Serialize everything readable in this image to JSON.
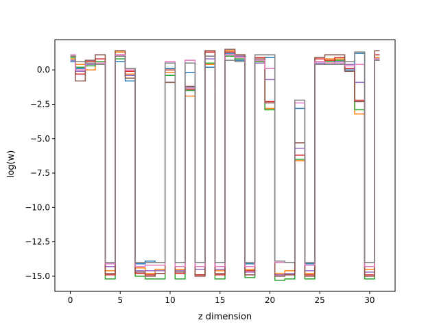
{
  "chart_data": {
    "type": "line",
    "drawstyle": "steps-mid",
    "title": "",
    "xlabel": "z dimension",
    "ylabel": "log(w)",
    "xlim": [
      -1.55,
      32.55
    ],
    "ylim": [
      -16.1,
      2.2
    ],
    "x_ticks": [
      0,
      5,
      10,
      15,
      20,
      25,
      30
    ],
    "x_tick_labels": [
      "0",
      "5",
      "10",
      "15",
      "20",
      "25",
      "30"
    ],
    "y_ticks": [
      0.0,
      -2.5,
      -5.0,
      -7.5,
      -10.0,
      -12.5,
      -15.0
    ],
    "y_tick_labels": [
      "0.0",
      "−2.5",
      "−5.0",
      "−7.5",
      "−10.0",
      "−12.5",
      "−15.0"
    ],
    "grid": false,
    "x": [
      0,
      1,
      2,
      3,
      4,
      5,
      6,
      7,
      8,
      9,
      10,
      11,
      12,
      13,
      14,
      15,
      16,
      17,
      18,
      19,
      20,
      21,
      22,
      23,
      24,
      25,
      26,
      27,
      28,
      29,
      30,
      31
    ],
    "series": [
      {
        "color": "#1f77b4",
        "values": [
          0.6,
          0.1,
          0.4,
          0.5,
          -14.0,
          0.6,
          -0.8,
          -14.1,
          -13.9,
          -14.0,
          0.1,
          -14.0,
          -0.2,
          -14.0,
          0.2,
          -14.0,
          1.2,
          0.7,
          -14.1,
          0.5,
          0.9,
          -13.9,
          -14.0,
          -2.8,
          -14.1,
          0.4,
          0.5,
          0.6,
          0.0,
          1.2,
          -14.0,
          0.8
        ]
      },
      {
        "color": "#ff7f0e",
        "values": [
          0.8,
          0.4,
          0.0,
          0.4,
          -14.6,
          1.3,
          -0.3,
          -14.4,
          -14.8,
          -14.5,
          -0.2,
          -14.5,
          -1.9,
          -14.3,
          0.4,
          -14.6,
          1.4,
          1.1,
          -14.5,
          0.6,
          -2.8,
          -14.8,
          -14.6,
          -6.6,
          -14.8,
          0.6,
          0.8,
          0.8,
          0.3,
          -3.2,
          -14.5,
          0.9
        ]
      },
      {
        "color": "#2ca02c",
        "values": [
          0.9,
          0.2,
          0.3,
          0.6,
          -15.2,
          0.8,
          0.1,
          -15.0,
          -15.2,
          -15.2,
          -0.4,
          -15.2,
          -1.5,
          -14.9,
          0.5,
          -15.2,
          1.0,
          0.8,
          -15.1,
          0.6,
          -2.9,
          -15.3,
          -15.2,
          -6.5,
          -15.2,
          0.5,
          0.6,
          0.7,
          0.4,
          -2.9,
          -15.2,
          0.8
        ]
      },
      {
        "color": "#d62728",
        "values": [
          1.0,
          -0.3,
          0.6,
          0.8,
          -14.9,
          1.1,
          -0.1,
          -14.8,
          -14.9,
          -14.8,
          0.0,
          -14.8,
          -1.4,
          -14.9,
          1.3,
          -14.9,
          1.3,
          1.0,
          -14.6,
          0.9,
          -2.3,
          -14.9,
          -14.9,
          -6.2,
          -14.9,
          0.8,
          0.7,
          0.9,
          0.1,
          -2.2,
          -14.9,
          1.1
        ]
      },
      {
        "color": "#9467bd",
        "values": [
          0.7,
          -0.1,
          0.4,
          0.5,
          -14.3,
          1.0,
          -0.4,
          -14.6,
          -14.6,
          -14.6,
          -0.9,
          -14.6,
          -1.3,
          -14.5,
          0.8,
          -14.5,
          1.1,
          1.0,
          -14.7,
          0.5,
          -0.7,
          -14.9,
          -14.8,
          -5.7,
          -14.6,
          0.5,
          0.5,
          0.6,
          0.4,
          -0.9,
          -14.7,
          0.7
        ]
      },
      {
        "color": "#8c564b",
        "values": [
          1.0,
          -0.8,
          0.7,
          1.1,
          -14.8,
          1.4,
          -0.6,
          -14.7,
          -15.0,
          -14.8,
          -0.9,
          -14.7,
          -1.2,
          -15.0,
          1.4,
          -14.8,
          1.5,
          1.1,
          -14.9,
          0.8,
          -2.4,
          -15.0,
          -14.9,
          -5.3,
          -15.0,
          0.9,
          1.1,
          1.1,
          -0.1,
          -2.3,
          -15.0,
          1.4
        ]
      },
      {
        "color": "#e377c2",
        "values": [
          1.1,
          0.0,
          0.5,
          0.5,
          -14.1,
          1.1,
          0.0,
          -14.3,
          -14.2,
          -14.2,
          0.6,
          -14.3,
          0.7,
          -14.3,
          1.0,
          -14.3,
          1.1,
          0.9,
          -14.3,
          0.7,
          0.1,
          -14.0,
          -14.0,
          -2.4,
          -14.2,
          0.6,
          0.5,
          0.5,
          0.3,
          0.4,
          -14.3,
          0.8
        ]
      },
      {
        "color": "#7f7f7f",
        "values": [
          1.0,
          0.6,
          0.5,
          0.4,
          -14.0,
          1.0,
          0.1,
          -14.0,
          -14.0,
          -14.0,
          0.5,
          -14.0,
          0.5,
          -14.0,
          1.0,
          -14.0,
          0.7,
          0.6,
          -14.0,
          1.1,
          1.1,
          -13.9,
          -14.0,
          -2.2,
          -14.0,
          0.4,
          0.4,
          0.4,
          0.6,
          1.3,
          -14.0,
          0.7
        ]
      }
    ]
  }
}
